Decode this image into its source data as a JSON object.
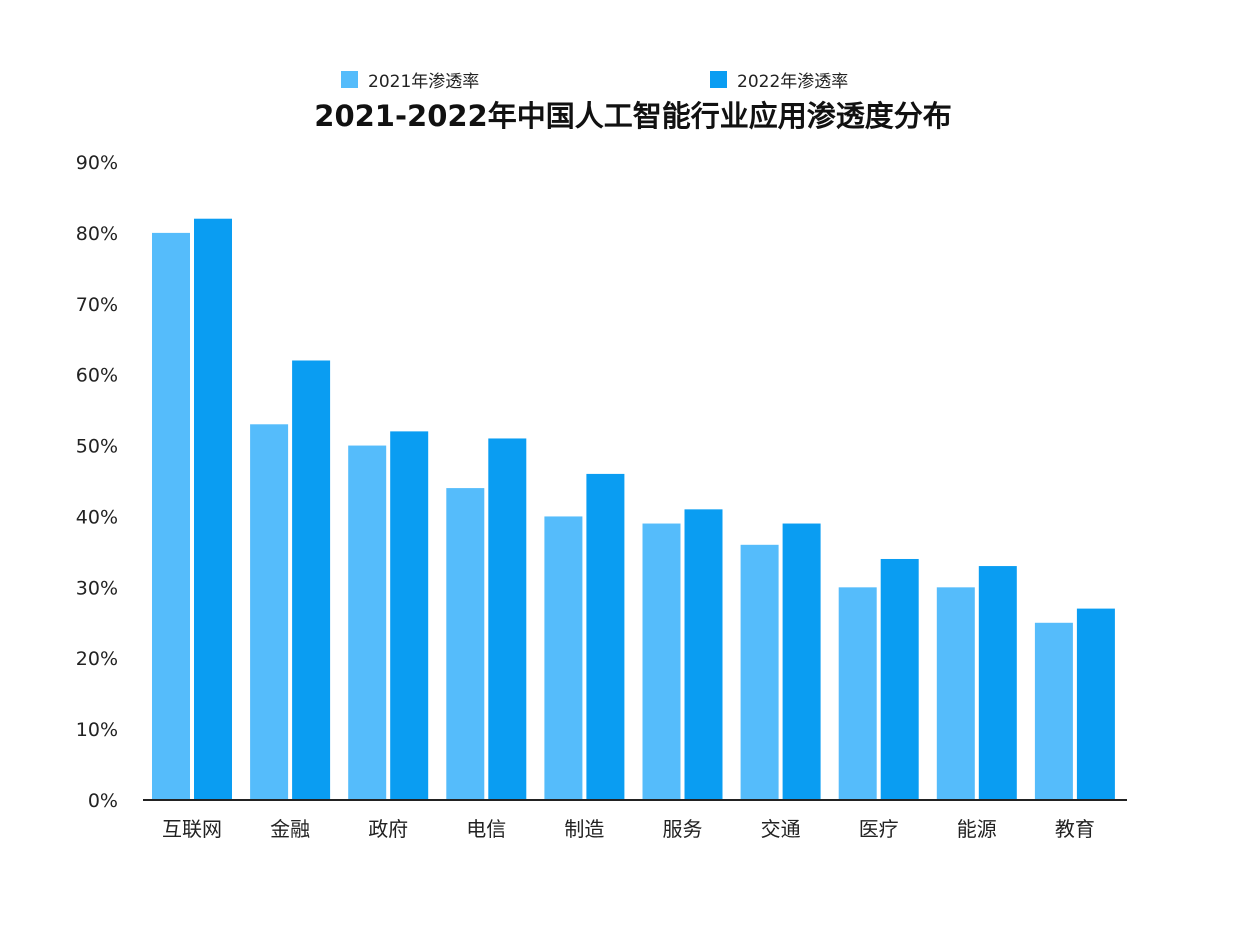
{
  "chart_data": {
    "type": "bar",
    "title": "2021-2022年中国人工智能行业应用渗透度分布",
    "xlabel": "",
    "ylabel": "",
    "categories": [
      "互联网",
      "金融",
      "政府",
      "电信",
      "制造",
      "服务",
      "交通",
      "医疗",
      "能源",
      "教育"
    ],
    "series": [
      {
        "name": "2021年渗透率",
        "color": "#55bcfb",
        "values": [
          80,
          53,
          50,
          44,
          40,
          39,
          36,
          30,
          30,
          25
        ]
      },
      {
        "name": "2022年渗透率",
        "color": "#0a9df2",
        "values": [
          82,
          62,
          52,
          51,
          46,
          41,
          39,
          34,
          33,
          27
        ]
      }
    ],
    "ylim": [
      0,
      90
    ],
    "yticks": [
      0,
      10,
      20,
      30,
      40,
      50,
      60,
      70,
      80,
      90
    ],
    "ytick_labels": [
      "0%",
      "10%",
      "20%",
      "30%",
      "40%",
      "50%",
      "60%",
      "70%",
      "80%",
      "90%"
    ],
    "legend_position": "top",
    "grid": false
  }
}
